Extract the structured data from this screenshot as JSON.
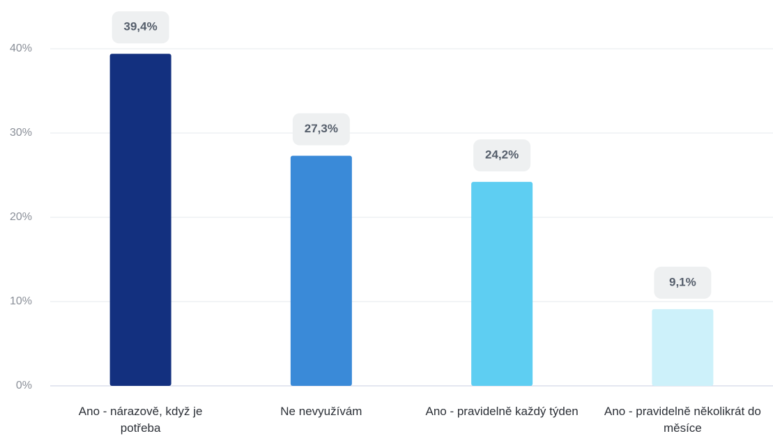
{
  "chart_data": {
    "type": "bar",
    "categories": [
      "Ano - nárazově, když je potřeba",
      "Ne nevyužívám",
      "Ano - pravidelně každý týden",
      "Ano - pravidelně několikrát do měsíce"
    ],
    "values": [
      39.4,
      27.3,
      24.2,
      9.1
    ],
    "value_labels": [
      "39,4%",
      "27,3%",
      "24,2%",
      "9,1%"
    ],
    "colors": [
      "#13307f",
      "#3a8ad8",
      "#5ecef2",
      "#cdf1fa"
    ],
    "ylim": [
      0,
      40
    ],
    "yticks": [
      {
        "value": 0,
        "label": "0%"
      },
      {
        "value": 10,
        "label": "10%"
      },
      {
        "value": 20,
        "label": "20%"
      },
      {
        "value": 30,
        "label": "30%"
      },
      {
        "value": 40,
        "label": "40%"
      }
    ],
    "grid": true
  }
}
